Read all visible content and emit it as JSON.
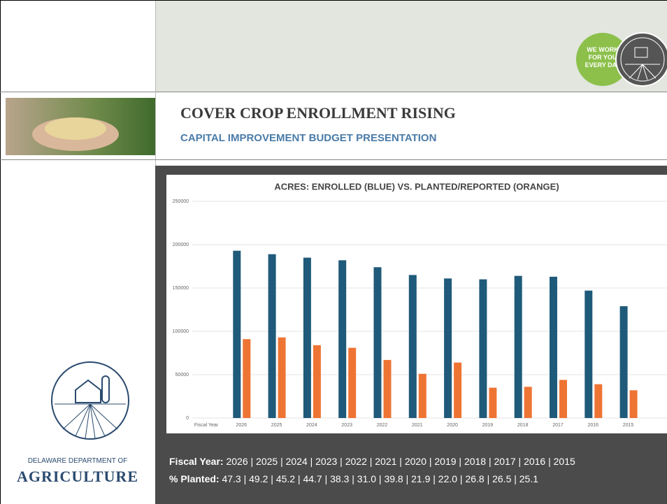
{
  "badge": {
    "text": "WE WORK FOR YOU EVERY DAY"
  },
  "header": {
    "title": "COVER CROP ENROLLMENT RISING",
    "subtitle": "CAPITAL IMPROVEMENT BUDGET PRESENTATION"
  },
  "logo": {
    "line1": "DELAWARE DEPARTMENT OF",
    "line2": "AGRICULTURE"
  },
  "footer": {
    "fiscal_label": "Fiscal Year:",
    "fiscal_values": "2026 | 2025 | 2024 | 2023 | 2022 | 2021 | 2020 | 2019 | 2018 | 2017 | 2016 | 2015",
    "planted_label": "% Planted:",
    "planted_values": "47.3 | 49.2 | 45.2 | 44.7 | 38.3 | 31.0 | 39.8 | 21.9 | 22.0 | 26.8 | 26.5 | 25.1"
  },
  "chart_data": {
    "type": "bar",
    "title": "ACRES: ENROLLED (BLUE) VS. PLANTED/REPORTED (ORANGE)",
    "categories": [
      "Fiscal Year",
      "2026",
      "2025",
      "2024",
      "2023",
      "2022",
      "2021",
      "2020",
      "2019",
      "2018",
      "2017",
      "2016",
      "2015"
    ],
    "series": [
      {
        "color": "#1f5a7a",
        "values": [
          null,
          193000,
          189000,
          185000,
          182000,
          174000,
          165000,
          161000,
          160000,
          164000,
          163000,
          147000,
          129000
        ]
      },
      {
        "color": "#ee7434",
        "values": [
          null,
          91000,
          93000,
          84000,
          81000,
          67000,
          51000,
          64000,
          35000,
          36000,
          44000,
          39000,
          32000
        ]
      }
    ],
    "ylim": [
      0,
      250000
    ],
    "yticks": [
      0,
      50000,
      100000,
      150000,
      200000,
      250000
    ],
    "grid": true
  }
}
